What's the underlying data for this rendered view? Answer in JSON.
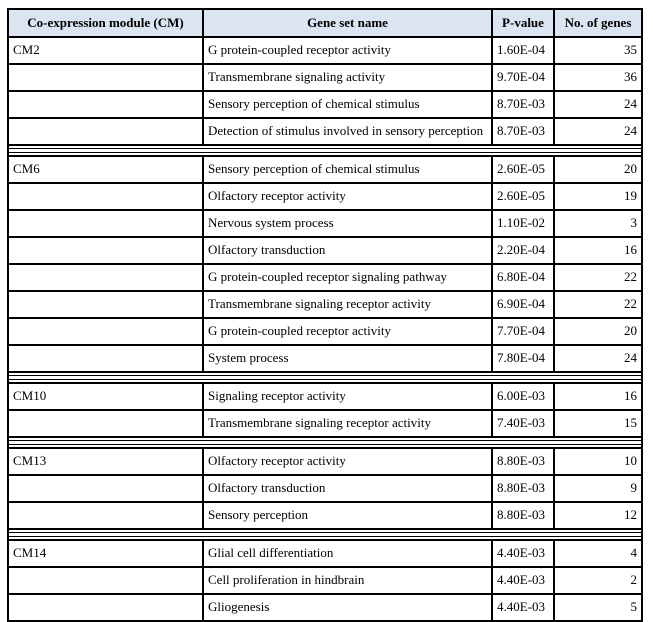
{
  "colors": {
    "header_bg": "#dbe5f1",
    "border": "#000000",
    "text": "#000000"
  },
  "table": {
    "headers": [
      "Co-expression module (CM)",
      "Gene set name",
      "P-value",
      "No. of genes"
    ],
    "sections": [
      {
        "module": "CM2",
        "rows": [
          {
            "gene_set": "G protein-coupled receptor activity",
            "p_value": "1.60E-04",
            "num_genes": "35"
          },
          {
            "gene_set": "Transmembrane signaling activity",
            "p_value": "9.70E-04",
            "num_genes": "36"
          },
          {
            "gene_set": "Sensory perception of chemical stimulus",
            "p_value": "8.70E-03",
            "num_genes": "24"
          },
          {
            "gene_set": "Detection of stimulus involved in sensory perception",
            "p_value": "8.70E-03",
            "num_genes": "24"
          }
        ]
      },
      {
        "module": "CM6",
        "rows": [
          {
            "gene_set": "Sensory perception of chemical stimulus",
            "p_value": "2.60E-05",
            "num_genes": "20"
          },
          {
            "gene_set": "Olfactory receptor activity",
            "p_value": "2.60E-05",
            "num_genes": "19"
          },
          {
            "gene_set": "Nervous system process",
            "p_value": "1.10E-02",
            "num_genes": "3"
          },
          {
            "gene_set": "Olfactory transduction",
            "p_value": "2.20E-04",
            "num_genes": "16"
          },
          {
            "gene_set": "G protein-coupled receptor signaling pathway",
            "p_value": "6.80E-04",
            "num_genes": "22"
          },
          {
            "gene_set": "Transmembrane signaling receptor activity",
            "p_value": "6.90E-04",
            "num_genes": "22"
          },
          {
            "gene_set": "G protein-coupled receptor activity",
            "p_value": "7.70E-04",
            "num_genes": "20"
          },
          {
            "gene_set": "System process",
            "p_value": "7.80E-04",
            "num_genes": "24"
          }
        ]
      },
      {
        "module": "CM10",
        "rows": [
          {
            "gene_set": "Signaling receptor activity",
            "p_value": "6.00E-03",
            "num_genes": "16"
          },
          {
            "gene_set": "Transmembrane signaling receptor activity",
            "p_value": "7.40E-03",
            "num_genes": "15"
          }
        ]
      },
      {
        "module": "CM13",
        "rows": [
          {
            "gene_set": "Olfactory receptor activity",
            "p_value": "8.80E-03",
            "num_genes": "10"
          },
          {
            "gene_set": "Olfactory transduction",
            "p_value": "8.80E-03",
            "num_genes": "9"
          },
          {
            "gene_set": "Sensory perception",
            "p_value": "8.80E-03",
            "num_genes": "12"
          }
        ]
      },
      {
        "module": "CM14",
        "rows": [
          {
            "gene_set": "Glial cell differentiation",
            "p_value": "4.40E-03",
            "num_genes": "4"
          },
          {
            "gene_set": "Cell proliferation in hindbrain",
            "p_value": "4.40E-03",
            "num_genes": "2"
          },
          {
            "gene_set": "Gliogenesis",
            "p_value": "4.40E-03",
            "num_genes": "5"
          }
        ]
      }
    ]
  }
}
